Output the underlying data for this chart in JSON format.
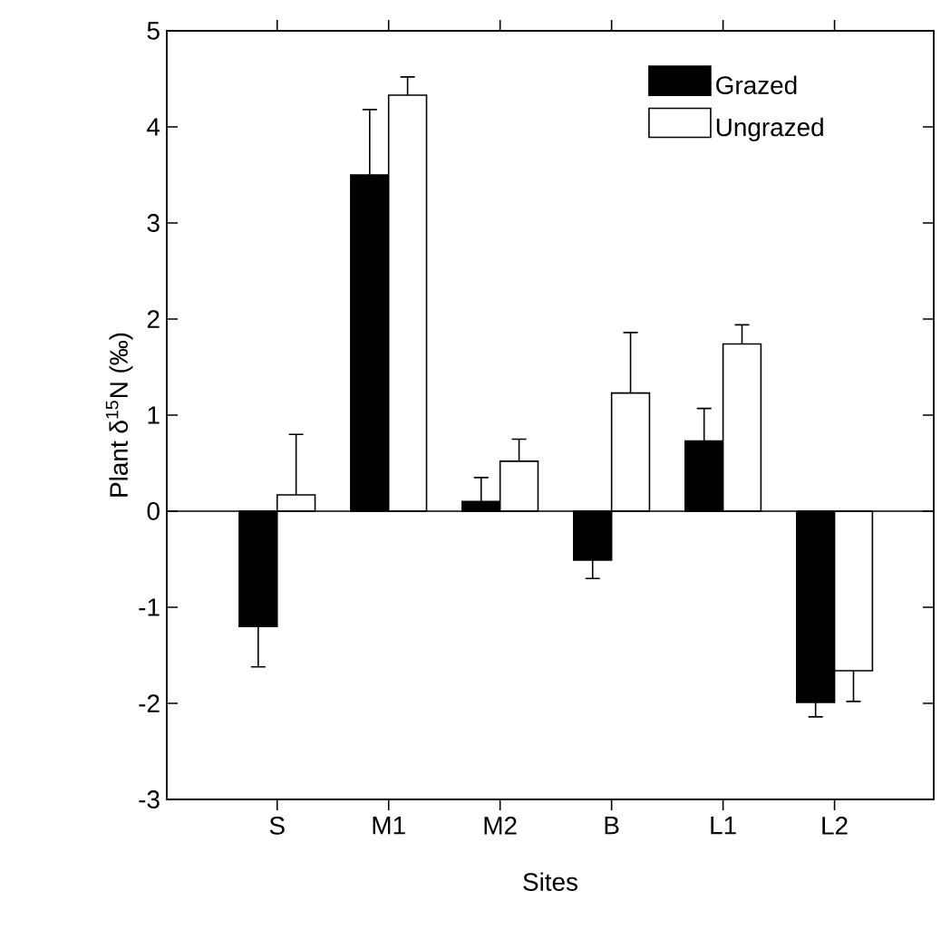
{
  "chart_data": {
    "type": "bar",
    "xlabel": "Sites",
    "ylabel": "Plant δ$^{15}$N (‰)",
    "categories": [
      "S",
      "M1",
      "M2",
      "B",
      "L1",
      "L2"
    ],
    "ylim": [
      -3,
      5
    ],
    "yticks": [
      -3,
      -2,
      -1,
      0,
      1,
      2,
      3,
      4,
      5
    ],
    "legend": "top right",
    "series": [
      {
        "name": "Grazed",
        "color": "#000000",
        "values": [
          -1.2,
          3.5,
          0.1,
          -0.51,
          0.73,
          -1.99
        ],
        "errors": [
          [
            -1.62,
            -1.2
          ],
          [
            3.5,
            4.18
          ],
          [
            0.1,
            0.35
          ],
          [
            -0.7,
            -0.51
          ],
          [
            0.73,
            1.07
          ],
          [
            -2.14,
            -1.99
          ]
        ]
      },
      {
        "name": "Ungrazed",
        "color": "#ffffff",
        "values": [
          0.17,
          4.33,
          0.52,
          1.23,
          1.74,
          -1.66
        ],
        "errors": [
          [
            0.17,
            0.8
          ],
          [
            4.33,
            4.52
          ],
          [
            0.52,
            0.75
          ],
          [
            1.23,
            1.86
          ],
          [
            1.74,
            1.94
          ],
          [
            -1.98,
            -1.66
          ]
        ]
      }
    ]
  }
}
